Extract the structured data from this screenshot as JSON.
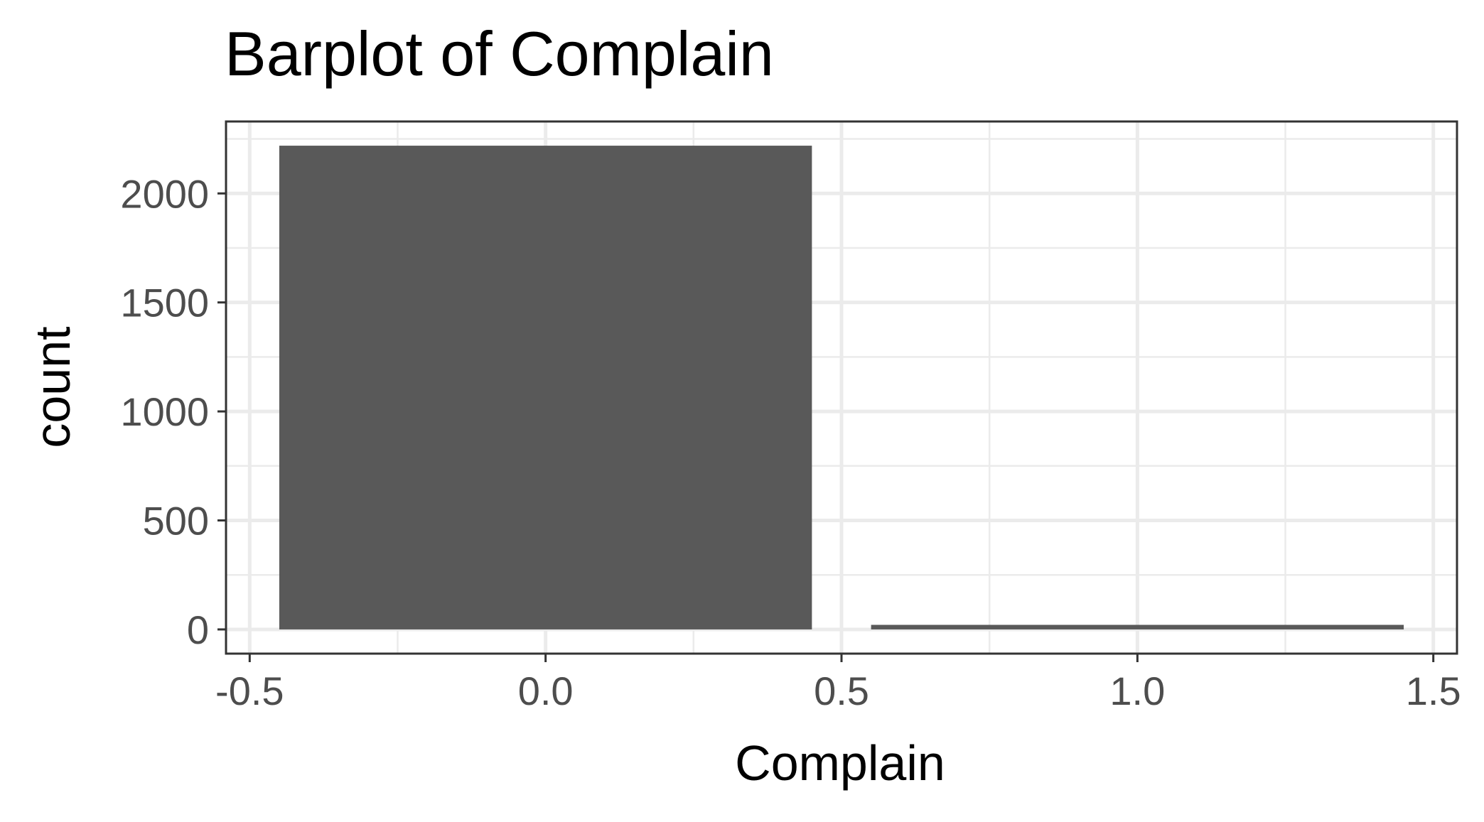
{
  "chart_data": {
    "type": "bar",
    "title": "Barplot of Complain",
    "xlabel": "Complain",
    "ylabel": "count",
    "x": [
      0,
      1
    ],
    "values": [
      2219,
      21
    ],
    "bar_width": 0.9,
    "xlim": [
      -0.54,
      1.54
    ],
    "ylim": [
      -111,
      2330
    ],
    "x_ticks": [
      -0.5,
      0.0,
      0.5,
      1.0,
      1.5
    ],
    "x_tick_labels": [
      "-0.5",
      "0.0",
      "0.5",
      "1.0",
      "1.5"
    ],
    "y_ticks": [
      0,
      500,
      1000,
      1500,
      2000
    ],
    "y_tick_labels": [
      "0",
      "500",
      "1000",
      "1500",
      "2000"
    ],
    "grid": true,
    "legend": "none",
    "colors": {
      "bar": "#595959",
      "grid": "#ebebeb",
      "panel_border": "#333333",
      "tick_text": "#4d4d4d",
      "background": "#ffffff"
    }
  }
}
